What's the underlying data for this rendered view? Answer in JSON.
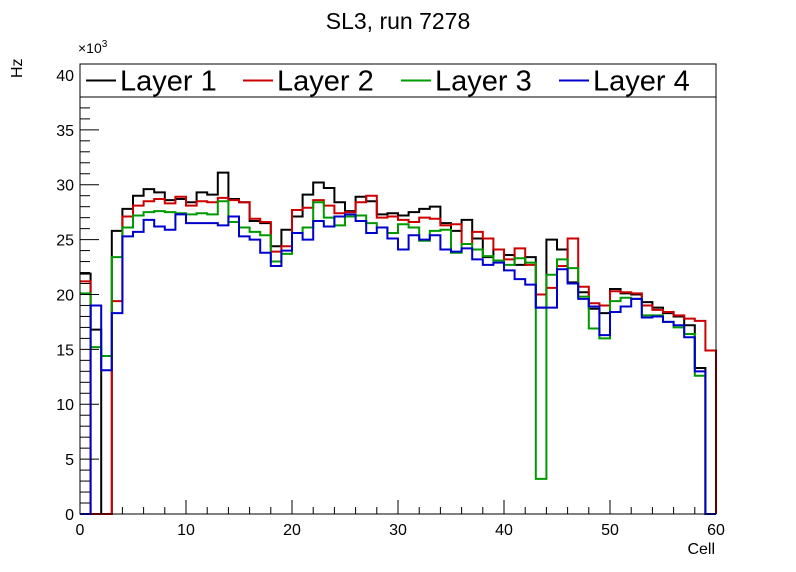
{
  "chart_data": {
    "type": "line",
    "style": "step-histogram",
    "title": "SL3, run 7278",
    "xlabel": "Cell",
    "ylabel": "Hz",
    "y_multiplier_label": "×10",
    "y_multiplier_exponent": "3",
    "xlim": [
      0,
      60
    ],
    "ylim": [
      0,
      41
    ],
    "x_ticks": [
      0,
      10,
      20,
      30,
      40,
      50,
      60
    ],
    "x_tick_labels": [
      "0",
      "10",
      "20",
      "30",
      "40",
      "50",
      "60"
    ],
    "y_ticks": [
      0,
      5,
      10,
      15,
      20,
      25,
      30,
      35,
      40
    ],
    "y_tick_labels": [
      "0",
      "5",
      "10",
      "15",
      "20",
      "25",
      "30",
      "35",
      "40"
    ],
    "legend_position": "top",
    "bin_edges_start": 0,
    "bin_width": 1,
    "series": [
      {
        "name": "Layer 1",
        "color": "#000000",
        "values": [
          21.9,
          16.8,
          0,
          25.8,
          27.8,
          29.0,
          29.6,
          29.3,
          28.6,
          28.7,
          28.4,
          29.3,
          29.1,
          31.1,
          28.7,
          28.4,
          26.7,
          26.5,
          24.4,
          25.9,
          27.1,
          29.1,
          30.2,
          29.7,
          28.4,
          27.6,
          28.9,
          28.5,
          27.3,
          27.4,
          27.2,
          27.5,
          27.8,
          28.0,
          26.5,
          25.8,
          26.8,
          25.1,
          23.4,
          24.1,
          23.6,
          22.7,
          23.4,
          18.8,
          25.0,
          24.1,
          21.1,
          20.2,
          18.7,
          18.3,
          20.5,
          20.1,
          20.0,
          19.3,
          18.8,
          18.3,
          18.0,
          17.2,
          13.3,
          0
        ]
      },
      {
        "name": "Layer 2",
        "color": "#cc0000",
        "values": [
          21.2,
          0,
          0,
          19.4,
          27.1,
          28.1,
          28.5,
          28.7,
          28.3,
          28.9,
          28.1,
          28.5,
          28.4,
          28.8,
          28.6,
          28.4,
          26.9,
          26.6,
          23.9,
          24.4,
          27.7,
          27.9,
          28.6,
          28.1,
          27.4,
          27.5,
          28.4,
          29.0,
          27.0,
          27.1,
          26.8,
          26.6,
          27.0,
          26.9,
          26.3,
          26.4,
          24.6,
          25.7,
          25.1,
          24.1,
          23.2,
          24.2,
          22.7,
          20.0,
          20.6,
          22.6,
          25.1,
          20.7,
          19.2,
          19.0,
          20.3,
          20.2,
          20.1,
          19.0,
          18.6,
          18.4,
          18.1,
          17.8,
          17.6,
          14.9
        ]
      },
      {
        "name": "Layer 3",
        "color": "#009900",
        "values": [
          20.1,
          15.2,
          14.4,
          23.4,
          26.1,
          27.2,
          27.5,
          27.6,
          27.5,
          27.4,
          27.3,
          27.4,
          27.3,
          28.5,
          26.6,
          26.1,
          25.7,
          25.4,
          23.0,
          23.7,
          25.6,
          26.1,
          28.4,
          27.0,
          26.3,
          27.1,
          27.2,
          26.5,
          26.1,
          25.6,
          26.4,
          26.1,
          24.9,
          25.8,
          25.9,
          23.8,
          24.6,
          24.1,
          23.5,
          23.1,
          22.7,
          23.3,
          22.9,
          3.2,
          21.8,
          23.2,
          22.4,
          19.8,
          16.9,
          16.0,
          19.4,
          19.7,
          19.6,
          18.1,
          18.1,
          17.5,
          17.0,
          16.4,
          12.6,
          0
        ]
      },
      {
        "name": "Layer 4",
        "color": "#0000cc",
        "values": [
          0,
          19.0,
          13.1,
          18.3,
          25.3,
          25.7,
          26.8,
          26.2,
          25.9,
          27.3,
          26.5,
          26.5,
          26.5,
          26.3,
          27.1,
          25.3,
          25.0,
          23.8,
          22.6,
          24.0,
          25.6,
          25.0,
          26.7,
          26.2,
          27.1,
          27.3,
          26.7,
          25.6,
          26.1,
          25.1,
          24.1,
          25.4,
          25.0,
          25.4,
          24.1,
          23.9,
          24.2,
          23.2,
          22.7,
          22.9,
          22.2,
          21.4,
          20.9,
          18.8,
          18.8,
          22.3,
          21.0,
          19.6,
          18.9,
          16.3,
          18.4,
          18.9,
          19.6,
          17.9,
          18.0,
          17.5,
          17.2,
          16.1,
          13.0,
          0
        ]
      }
    ]
  }
}
